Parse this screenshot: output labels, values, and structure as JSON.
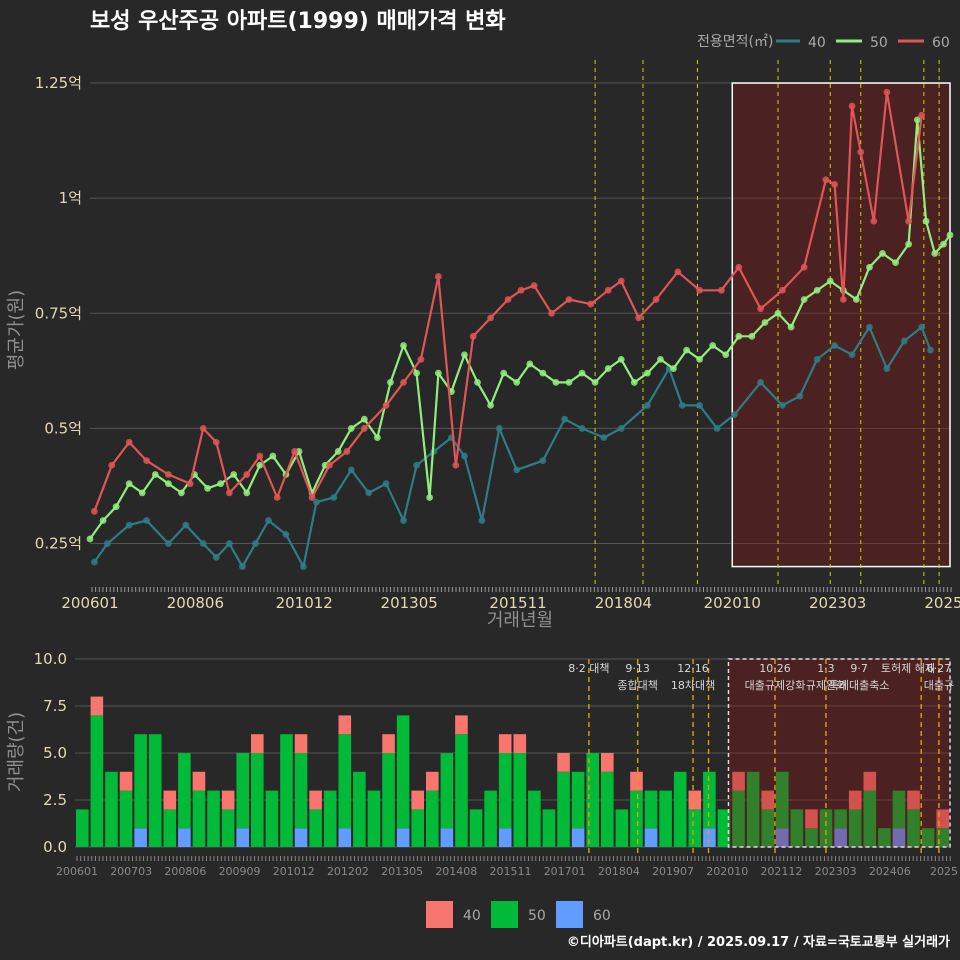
{
  "title": "보성 우산주공 아파트(1999) 매매가격 변화",
  "caption": "©디아파트(dapt.kr) / 2025.09.17 / 자료=국토교통부 실거래가",
  "legend": {
    "title": "전용면적(㎡)",
    "items": [
      "40",
      "50",
      "60"
    ]
  },
  "bottom_legend": {
    "items": [
      "40",
      "50",
      "60"
    ]
  },
  "colors": {
    "s40": "#2e7d86",
    "s50": "#90ee7e",
    "s60": "#e05555",
    "b40": "#f8766d",
    "b50": "#00ba38",
    "b60": "#619cff"
  },
  "chart_data": [
    {
      "type": "line",
      "title": "보성 우산주공 아파트(1999) 매매가격 변화",
      "xlabel": "거래년월",
      "ylabel": "평균가(원)",
      "x_tick_labels": [
        "200601",
        "200806",
        "201012",
        "201305",
        "201511",
        "201804",
        "202010",
        "202303",
        "2025"
      ],
      "y_tick_labels": [
        "0.25억",
        "0.5억",
        "0.75억",
        "1억",
        "1.25억"
      ],
      "y_ticks": [
        0.25,
        0.5,
        0.75,
        1.0,
        1.25
      ],
      "ylim": [
        0.16,
        1.3
      ],
      "xlim": [
        2006.0,
        2025.75
      ],
      "grid": true,
      "legend_position": "top-right",
      "highlight_range": [
        2020.75,
        2025.75
      ],
      "policy_lines": [
        2017.6,
        2018.7,
        2019.95,
        2021.8,
        2023.0,
        2023.7,
        2025.15,
        2025.5
      ],
      "series": [
        {
          "name": "40",
          "x": [
            2006.1,
            2006.4,
            2006.9,
            2007.3,
            2007.8,
            2008.2,
            2008.6,
            2008.9,
            2009.2,
            2009.5,
            2009.8,
            2010.1,
            2010.5,
            2010.9,
            2011.2,
            2011.6,
            2012.0,
            2012.4,
            2012.8,
            2013.2,
            2013.5,
            2013.9,
            2014.3,
            2014.6,
            2015.0,
            2015.4,
            2015.8,
            2016.4,
            2016.9,
            2017.3,
            2017.8,
            2018.2,
            2018.8,
            2019.3,
            2019.6,
            2020.0,
            2020.4,
            2020.8,
            2021.4,
            2021.9,
            2022.3,
            2022.7,
            2023.1,
            2023.5,
            2023.9,
            2024.3,
            2024.7,
            2025.1,
            2025.3
          ],
          "y": [
            0.21,
            0.25,
            0.29,
            0.3,
            0.25,
            0.29,
            0.25,
            0.22,
            0.25,
            0.2,
            0.25,
            0.3,
            0.27,
            0.2,
            0.34,
            0.35,
            0.41,
            0.36,
            0.38,
            0.3,
            0.42,
            0.45,
            0.48,
            0.44,
            0.3,
            0.5,
            0.41,
            0.43,
            0.52,
            0.5,
            0.48,
            0.5,
            0.55,
            0.63,
            0.55,
            0.55,
            0.5,
            0.53,
            0.6,
            0.55,
            0.57,
            0.65,
            0.68,
            0.66,
            0.72,
            0.63,
            0.69,
            0.72,
            0.67
          ]
        },
        {
          "name": "50",
          "x": [
            2006.0,
            2006.3,
            2006.6,
            2006.9,
            2007.2,
            2007.5,
            2007.8,
            2008.1,
            2008.4,
            2008.7,
            2009.0,
            2009.3,
            2009.6,
            2009.9,
            2010.2,
            2010.5,
            2010.8,
            2011.1,
            2011.4,
            2011.7,
            2012.0,
            2012.3,
            2012.6,
            2012.9,
            2013.2,
            2013.5,
            2013.8,
            2014.0,
            2014.3,
            2014.6,
            2014.9,
            2015.2,
            2015.5,
            2015.8,
            2016.1,
            2016.4,
            2016.7,
            2017.0,
            2017.3,
            2017.6,
            2017.9,
            2018.2,
            2018.5,
            2018.8,
            2019.1,
            2019.4,
            2019.7,
            2020.0,
            2020.3,
            2020.6,
            2020.9,
            2021.2,
            2021.5,
            2021.8,
            2022.1,
            2022.4,
            2022.7,
            2023.0,
            2023.3,
            2023.6,
            2023.9,
            2024.2,
            2024.5,
            2024.8,
            2025.0,
            2025.2,
            2025.4,
            2025.6,
            2025.75
          ],
          "y": [
            0.26,
            0.3,
            0.33,
            0.38,
            0.36,
            0.4,
            0.38,
            0.36,
            0.4,
            0.37,
            0.38,
            0.4,
            0.36,
            0.42,
            0.44,
            0.4,
            0.45,
            0.36,
            0.42,
            0.45,
            0.5,
            0.52,
            0.48,
            0.6,
            0.68,
            0.62,
            0.35,
            0.62,
            0.58,
            0.66,
            0.6,
            0.55,
            0.62,
            0.6,
            0.64,
            0.62,
            0.6,
            0.6,
            0.62,
            0.6,
            0.63,
            0.65,
            0.6,
            0.62,
            0.65,
            0.63,
            0.67,
            0.65,
            0.68,
            0.66,
            0.7,
            0.7,
            0.73,
            0.75,
            0.72,
            0.78,
            0.8,
            0.82,
            0.8,
            0.78,
            0.85,
            0.88,
            0.86,
            0.9,
            1.17,
            0.95,
            0.88,
            0.9,
            0.92
          ]
        },
        {
          "name": "60",
          "x": [
            2006.1,
            2006.5,
            2006.9,
            2007.3,
            2007.8,
            2008.3,
            2008.6,
            2008.9,
            2009.2,
            2009.6,
            2009.9,
            2010.3,
            2010.7,
            2011.1,
            2011.5,
            2011.9,
            2012.3,
            2012.8,
            2013.2,
            2013.6,
            2014.0,
            2014.4,
            2014.8,
            2015.2,
            2015.6,
            2015.9,
            2016.2,
            2016.6,
            2017.0,
            2017.5,
            2017.9,
            2018.2,
            2018.6,
            2019.0,
            2019.5,
            2020.0,
            2020.5,
            2020.9,
            2021.4,
            2021.9,
            2022.4,
            2022.9,
            2023.1,
            2023.3,
            2023.5,
            2023.7,
            2024.0,
            2024.3,
            2024.8,
            2025.1
          ],
          "y": [
            0.32,
            0.42,
            0.47,
            0.43,
            0.4,
            0.38,
            0.5,
            0.47,
            0.36,
            0.4,
            0.44,
            0.35,
            0.45,
            0.35,
            0.42,
            0.45,
            0.5,
            0.55,
            0.6,
            0.65,
            0.83,
            0.42,
            0.7,
            0.74,
            0.78,
            0.8,
            0.81,
            0.75,
            0.78,
            0.77,
            0.8,
            0.82,
            0.74,
            0.78,
            0.84,
            0.8,
            0.8,
            0.85,
            0.76,
            0.8,
            0.85,
            1.04,
            1.03,
            0.78,
            1.2,
            1.1,
            0.95,
            1.23,
            0.95,
            1.18
          ]
        }
      ]
    },
    {
      "type": "bar",
      "xlabel": "",
      "ylabel": "거래량(건)",
      "x_tick_labels": [
        "200601",
        "200703",
        "200806",
        "200909",
        "201012",
        "201202",
        "201305",
        "201408",
        "201511",
        "201701",
        "201804",
        "201907",
        "202010",
        "202112",
        "202303",
        "202406",
        "2025"
      ],
      "y_tick_labels": [
        "0.0",
        "2.5",
        "5.0",
        "7.5",
        "10.0"
      ],
      "y_ticks": [
        0,
        2.5,
        5,
        7.5,
        10
      ],
      "ylim": [
        0,
        10
      ],
      "stacked": true,
      "grid": true,
      "legend_position": "bottom",
      "highlight_range": [
        2020.75,
        2025.75
      ],
      "policy_lines": [
        2017.6,
        2018.7,
        2019.95,
        2020.3,
        2021.8,
        2022.95,
        2025.1,
        2025.5
      ],
      "annotations": [
        {
          "x": 2017.6,
          "lines": [
            "8·2 대책"
          ]
        },
        {
          "x": 2018.7,
          "lines": [
            "9·13",
            "종합대책"
          ]
        },
        {
          "x": 2019.95,
          "lines": [
            "12·16",
            "18차대책"
          ]
        },
        {
          "x": 2021.8,
          "lines": [
            "10·26",
            "대출규제강화"
          ]
        },
        {
          "x": 2022.95,
          "lines": [
            "1·3",
            "규제완화"
          ]
        },
        {
          "x": 2023.7,
          "lines": [
            "9·7",
            "특례대출축소"
          ]
        },
        {
          "x": 2024.8,
          "lines": [
            "토허제 해제"
          ]
        },
        {
          "x": 2025.5,
          "lines": [
            "6·27",
            "대출규"
          ]
        }
      ],
      "series": [
        {
          "name": "40",
          "values": [
            0,
            1,
            0,
            1,
            0,
            0,
            1,
            0,
            1,
            0,
            1,
            0,
            1,
            0,
            0,
            1,
            1,
            0,
            1,
            0,
            0,
            1,
            0,
            1,
            1,
            0,
            1,
            0,
            0,
            1,
            1,
            0,
            0,
            1,
            0,
            0,
            1,
            0,
            1,
            0,
            0,
            0,
            1,
            0,
            0,
            1,
            0,
            1,
            0,
            0,
            1,
            0,
            0,
            1,
            1,
            0,
            0,
            1,
            0,
            1
          ]
        },
        {
          "name": "50",
          "values": [
            2,
            7,
            4,
            3,
            5,
            6,
            2,
            4,
            3,
            3,
            2,
            4,
            5,
            3,
            6,
            4,
            2,
            3,
            5,
            4,
            3,
            5,
            6,
            2,
            3,
            4,
            6,
            2,
            3,
            4,
            5,
            3,
            2,
            4,
            3,
            5,
            4,
            2,
            3,
            2,
            3,
            4,
            2,
            3,
            2,
            3,
            4,
            2,
            3,
            2,
            1,
            2,
            1,
            2,
            3,
            1,
            2,
            2,
            1,
            1
          ]
        },
        {
          "name": "60",
          "values": [
            0,
            0,
            0,
            0,
            1,
            0,
            0,
            1,
            0,
            0,
            0,
            1,
            0,
            0,
            0,
            1,
            0,
            0,
            1,
            0,
            0,
            0,
            1,
            0,
            0,
            1,
            0,
            0,
            0,
            1,
            0,
            0,
            0,
            0,
            1,
            0,
            0,
            0,
            0,
            1,
            0,
            0,
            0,
            1,
            0,
            0,
            0,
            0,
            1,
            0,
            0,
            0,
            1,
            0,
            0,
            0,
            1,
            0,
            0,
            0
          ]
        }
      ]
    }
  ]
}
